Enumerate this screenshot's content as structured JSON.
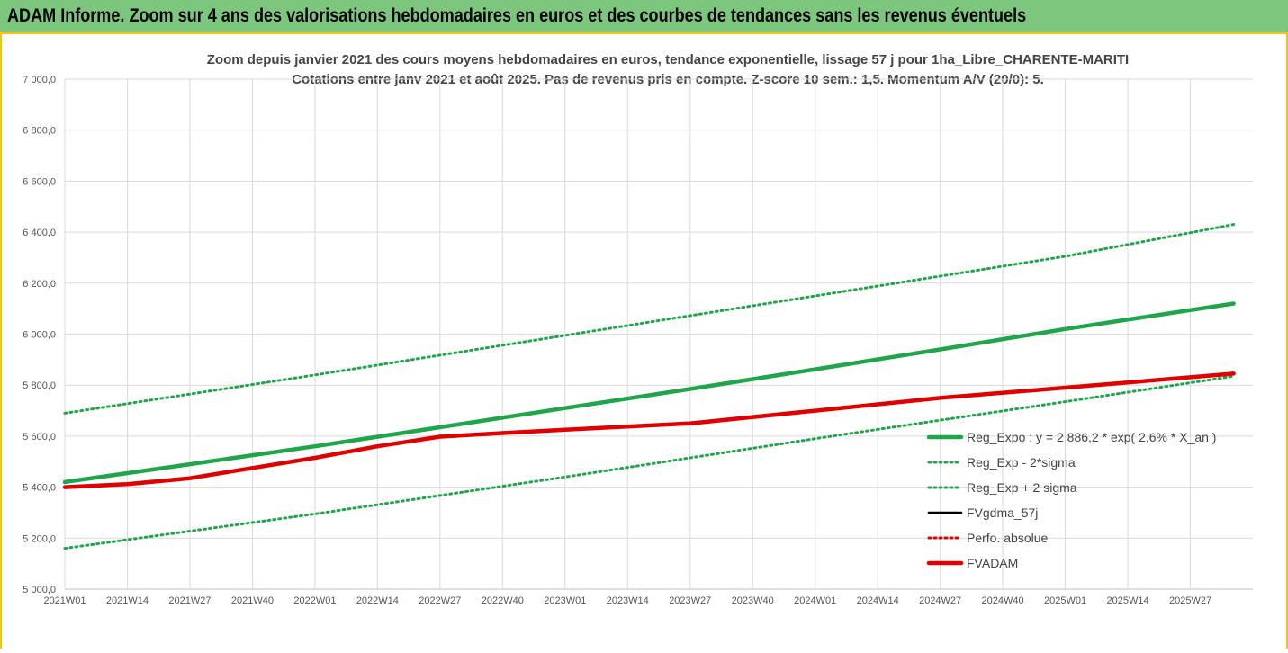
{
  "banner": {
    "title": "ADAM Informe. Zoom sur 4 ans des valorisations hebdomadaires en euros et des courbes de tendances sans les revenus éventuels"
  },
  "colors": {
    "banner_bg": "#7dc67e",
    "border": "#f0c419",
    "reg_expo": "#1fa64a",
    "reg_dotted": "#1fa64a",
    "fvgdma": "#000000",
    "perfo": "#e00000",
    "fvadam": "#e00000"
  },
  "chart_data": {
    "type": "line",
    "title": "Zoom depuis janvier 2021 des cours moyens hebdomadaires en euros, tendance exponentielle, lissage 57 j pour 1ha_Libre_CHARENTE-MARITI",
    "subtitle": "Cotations entre janv 2021 et août 2025.  Pas de revenus pris en compte. Z-score 10 sem.: 1,5. Momentum A/V (20/0): 5.",
    "xlabel": "",
    "ylabel": "",
    "ylim": [
      5000,
      7000
    ],
    "yticks": [
      "5 000,0",
      "5 200,0",
      "5 400,0",
      "5 600,0",
      "5 800,0",
      "6 000,0",
      "6 200,0",
      "6 400,0",
      "6 600,0",
      "6 800,0",
      "7 000,0"
    ],
    "x_tick_labels": [
      "2021W01",
      "2021W14",
      "2021W27",
      "2021W40",
      "2022W01",
      "2022W14",
      "2022W27",
      "2022W40",
      "2023W01",
      "2023W14",
      "2023W27",
      "2023W40",
      "2024W01",
      "2024W14",
      "2024W27",
      "2024W40",
      "2025W01",
      "2025W14",
      "2025W27"
    ],
    "x_range_weeks": [
      0,
      243
    ],
    "grid": true,
    "legend_position": "right",
    "series": [
      {
        "name": "Reg_Expo : y = 2 886,2 * exp( 2,6% *  X_an )",
        "style": "solid-thick",
        "color": "#1fa64a",
        "x_weeks": [
          0,
          26,
          52,
          78,
          104,
          130,
          156,
          182,
          208,
          243
        ],
        "values": [
          5420,
          5490,
          5560,
          5635,
          5710,
          5785,
          5862,
          5940,
          6020,
          6120
        ]
      },
      {
        "name": "Reg_Exp - 2*sigma",
        "style": "dotted",
        "color": "#1fa64a",
        "x_weeks": [
          0,
          52,
          104,
          156,
          208,
          243
        ],
        "values": [
          5160,
          5295,
          5440,
          5590,
          5735,
          5835
        ]
      },
      {
        "name": "Reg_Exp + 2 sigma",
        "style": "dotted",
        "color": "#1fa64a",
        "x_weeks": [
          0,
          52,
          104,
          156,
          208,
          243
        ],
        "values": [
          5690,
          5840,
          5995,
          6150,
          6305,
          6430
        ]
      },
      {
        "name": "FVgdma_57j",
        "style": "solid",
        "color": "#000000",
        "x_weeks": [
          0,
          13,
          26,
          39,
          52,
          65,
          78,
          91,
          104,
          130,
          156,
          182,
          208,
          243
        ],
        "values": [
          5400,
          5412,
          5435,
          5475,
          5515,
          5560,
          5600,
          5612,
          5625,
          5650,
          5700,
          5750,
          5790,
          5845
        ]
      },
      {
        "name": "Perfo. absolue",
        "style": "dotted",
        "color": "#e00000",
        "x_weeks": [
          0,
          13,
          26,
          39,
          52,
          65,
          78,
          91,
          104,
          130,
          156,
          182,
          208,
          243
        ],
        "values": [
          5400,
          5412,
          5435,
          5475,
          5515,
          5560,
          5600,
          5612,
          5625,
          5650,
          5700,
          5750,
          5790,
          5845
        ]
      },
      {
        "name": "FVADAM",
        "style": "solid-thick",
        "color": "#e00000",
        "x_weeks": [
          0,
          13,
          26,
          39,
          52,
          65,
          78,
          91,
          104,
          130,
          156,
          182,
          208,
          243
        ],
        "values": [
          5400,
          5412,
          5435,
          5475,
          5515,
          5560,
          5598,
          5612,
          5625,
          5650,
          5700,
          5750,
          5790,
          5845
        ]
      }
    ]
  }
}
